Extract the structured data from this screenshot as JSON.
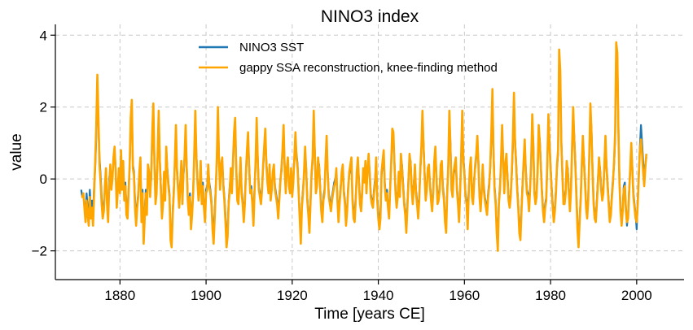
{
  "chart_data": {
    "type": "line",
    "title": "NINO3 index",
    "xlabel": "Time [years CE]",
    "ylabel": "value",
    "xlim": [
      1865,
      2011
    ],
    "ylim": [
      -2.8,
      4.3
    ],
    "xticks": [
      1880,
      1900,
      1920,
      1940,
      1960,
      1980,
      2000
    ],
    "yticks": [
      -2,
      0,
      2,
      4
    ],
    "xtick_labels": [
      "1880",
      "1900",
      "1920",
      "1940",
      "1960",
      "1980",
      "2000"
    ],
    "ytick_labels": [
      "−2",
      "0",
      "2",
      "4"
    ],
    "grid": true,
    "legend_position": "top-center",
    "series": [
      {
        "name": "NINO3 SST",
        "color": "#1f77b4",
        "x_start": 1871.0,
        "x_step": 0.25,
        "values": [
          -0.3,
          -0.5,
          -0.5,
          -0.7,
          -1.0,
          -0.4,
          -0.8,
          -1.1,
          -0.3,
          -0.9,
          -0.6,
          -1.0,
          -0.2,
          0.3,
          1.2,
          2.7,
          1.5,
          0.6,
          0.1,
          -0.5,
          -0.9,
          -0.8,
          -0.3,
          0.2,
          -0.6,
          -1.0,
          0.0,
          0.3,
          -0.2,
          0.1,
          0.5,
          0.8,
          0.3,
          -0.6,
          -0.2,
          0.2,
          -0.3,
          0.7,
          -0.2,
          0.4,
          -0.5,
          -0.1,
          -0.8,
          -0.9,
          -0.3,
          0.3,
          1.5,
          2.0,
          0.4,
          0.2,
          -0.6,
          -1.1,
          -0.7,
          -0.4,
          0.1,
          0.5,
          -1.0,
          -0.3,
          -1.6,
          -0.9,
          -0.3,
          -0.8,
          0.3,
          0.1,
          -0.4,
          0.0,
          1.1,
          1.9,
          0.6,
          -0.5,
          -0.3,
          0.6,
          1.7,
          0.6,
          -0.2,
          -1.0,
          -0.6,
          0.1,
          -0.5,
          0.8,
          0.3,
          -0.1,
          -0.4,
          -1.5,
          -1.8,
          -0.9,
          -0.3,
          0.4,
          1.3,
          0.3,
          -0.2,
          -0.7,
          -0.1,
          0.4,
          -0.6,
          0.1,
          0.5,
          1.3,
          0.4,
          -0.5,
          -0.8,
          -0.4,
          -1.2,
          -0.9,
          -0.3,
          0.6,
          1.7,
          0.7,
          0.0,
          -0.5,
          -0.2,
          0.4,
          -0.6,
          -0.1,
          -0.7,
          -1.0,
          -0.3,
          -0.2,
          0.3,
          -0.1,
          -0.3,
          -0.6,
          -1.2,
          -1.5,
          -0.9,
          -0.2,
          0.5,
          1.8,
          0.6,
          -0.2,
          0.3,
          0.5,
          -0.1,
          -0.5,
          -1.0,
          -1.8,
          -1.4,
          -0.6,
          -0.2,
          0.2,
          -0.3,
          0.4,
          1.1,
          1.5,
          0.4,
          -0.5,
          -0.6,
          0.0,
          0.5,
          -0.3,
          -0.6,
          -1.0,
          -0.6,
          0.1,
          0.7,
          1.1,
          0.4,
          -0.3,
          -0.2,
          -0.6,
          -1.1,
          -0.3,
          0.4,
          1.5,
          0.6,
          -0.2,
          -0.4,
          -0.6,
          -0.2,
          0.3,
          0.8,
          1.2,
          0.5,
          0.0,
          -0.3,
          0.3,
          -0.5,
          -0.2,
          0.1,
          0.3,
          -0.2,
          -0.4,
          -0.6,
          -1.0,
          -0.5,
          0.0,
          0.2,
          0.7,
          1.3,
          0.4,
          -0.3,
          0.2,
          0.5,
          -0.1,
          -0.3,
          0.2,
          -0.4,
          0.0,
          0.5,
          1.1,
          0.7,
          0.4,
          -0.3,
          -1.0,
          -1.6,
          -0.7,
          -0.3,
          0.1,
          0.8,
          0.3,
          -0.5,
          -0.9,
          -1.3,
          -0.6,
          0.1,
          0.5,
          1.7,
          0.8,
          -0.3,
          -0.1,
          0.5,
          0.4,
          -0.2,
          -0.8,
          -1.0,
          -0.5,
          -0.3,
          0.4,
          1.0,
          0.2,
          -0.4,
          -0.6,
          -0.8,
          -0.5,
          -0.3,
          -0.1,
          0.0,
          0.2,
          -0.5,
          -1.1,
          -0.6,
          -0.2,
          0.1,
          0.3,
          -0.3,
          -0.6,
          -1.1,
          -0.8,
          -0.2,
          0.1,
          0.3,
          0.5,
          -0.5,
          -0.9,
          -1.0,
          -0.5,
          0.1,
          0.5,
          0.0,
          -0.6,
          -0.8,
          -0.3,
          0.2,
          0.0,
          0.4,
          -0.3,
          0.2,
          0.6,
          0.2,
          -0.4,
          -0.6,
          -0.7,
          -0.3,
          0.0,
          0.5,
          -0.5,
          -0.9,
          -1.2,
          -1.0,
          0.1,
          0.4,
          0.7,
          -0.1,
          -0.5,
          -0.3,
          -0.7,
          -1.0,
          -0.2,
          0.4,
          1.2,
          1.1,
          0.5,
          -0.3,
          -0.7,
          -0.4,
          0.1,
          -0.4,
          0.6,
          0.4,
          -0.1,
          -0.6,
          -0.9,
          -1.3,
          -0.7,
          0.0,
          0.6,
          0.5,
          -0.2,
          -0.6,
          -0.1,
          0.3,
          -0.3,
          -0.6,
          -0.9,
          -0.5,
          0.2,
          0.8,
          1.7,
          1.0,
          0.2,
          -0.5,
          -0.2,
          0.2,
          0.3,
          -0.1,
          -0.5,
          -0.8,
          -0.3,
          0.4,
          0.8,
          0.1,
          -0.6,
          -0.5,
          -0.2,
          0.3,
          0.4,
          -0.2,
          -0.5,
          -1.1,
          -1.3,
          -0.3,
          0.3,
          1.7,
          1.0,
          -0.2,
          -0.4,
          0.1,
          0.3,
          0.5,
          -0.2,
          -0.6,
          -1.0,
          -0.3,
          0.6,
          1.7,
          0.6,
          0.2,
          -0.4,
          -0.6,
          -1.2,
          -0.3,
          0.2,
          0.5,
          -0.4,
          -0.6,
          0.0,
          0.3,
          0.6,
          1.0,
          0.5,
          -0.4,
          -0.8,
          -0.3,
          0.3,
          -0.2,
          -0.5,
          -0.7,
          -0.9,
          -0.4,
          -0.1,
          0.3,
          1.1,
          2.3,
          0.8,
          -0.2,
          -0.6,
          -1.3,
          -1.6,
          -0.6,
          -0.2,
          0.4,
          1.3,
          0.6,
          -0.3,
          0.3,
          0.6,
          0.1,
          -0.5,
          -0.7,
          -0.4,
          0.1,
          0.9,
          2.2,
          1.1,
          0.5,
          -0.2,
          -0.7,
          -1.3,
          -1.5,
          -0.8,
          -0.1,
          0.4,
          0.9,
          0.3,
          -0.3,
          -0.4,
          -0.8,
          -0.2,
          0.4,
          1.6,
          1.0,
          -0.3,
          -0.6,
          -0.4,
          0.2,
          1.3,
          1.1,
          0.4,
          -0.3,
          -0.8,
          -1.0,
          -0.7,
          -0.5,
          0.4,
          1.6,
          1.1,
          0.4,
          -0.2,
          -0.7,
          -1.0,
          -0.8,
          -0.3,
          0.3,
          0.7,
          3.3,
          2.9,
          1.1,
          0.2,
          -0.6,
          -0.6,
          -0.3,
          0.4,
          0.3,
          -0.3,
          -0.8,
          -0.2,
          0.8,
          1.8,
          1.2,
          0.5,
          -0.4,
          -1.2,
          -1.8,
          -1.1,
          -0.5,
          0.3,
          1.0,
          0.6,
          0.0,
          -0.7,
          -1.0,
          -0.5,
          0.6,
          1.9,
          1.4,
          0.3,
          -0.6,
          -1.0,
          -1.1,
          -0.6,
          0.0,
          0.5,
          0.3,
          -0.2,
          -0.5,
          -0.3,
          0.3,
          1.0,
          0.4,
          -0.1,
          -0.6,
          -1.1,
          -0.9,
          -0.4,
          0.0,
          0.4,
          1.1,
          3.5,
          3.4,
          1.5,
          0.0,
          -0.8,
          -1.2,
          -0.8,
          -0.2,
          -0.1,
          -0.8,
          -1.3,
          -1.0,
          -0.3,
          0.2,
          0.9,
          0.3,
          -0.4,
          -0.7,
          -1.0,
          -1.4,
          -0.6,
          0.2,
          0.9,
          1.5,
          1.0,
          0.5,
          0.0,
          0.4,
          0.6
        ]
      },
      {
        "name": "gappy SSA reconstruction, knee-finding method",
        "color": "#ffa500",
        "x_start": 1871.0,
        "x_step": 0.25,
        "values": [
          -0.5,
          -0.5,
          -0.4,
          -0.8,
          -1.2,
          -0.6,
          -1.0,
          -1.3,
          -0.5,
          -1.1,
          -0.8,
          -1.3,
          -0.4,
          0.5,
          1.5,
          2.9,
          1.7,
          0.4,
          -0.1,
          -0.7,
          -1.1,
          -0.9,
          -0.2,
          0.3,
          -0.7,
          -1.2,
          -0.2,
          0.4,
          -0.3,
          0.0,
          0.6,
          0.9,
          0.2,
          -0.8,
          -0.3,
          0.3,
          -0.4,
          0.8,
          -0.3,
          0.5,
          -0.6,
          -0.2,
          -1.0,
          -1.1,
          -0.4,
          0.4,
          1.7,
          2.2,
          0.3,
          0.1,
          -0.8,
          -1.3,
          -0.8,
          -0.5,
          0.2,
          0.6,
          -1.2,
          -0.4,
          -1.8,
          -1.1,
          -0.4,
          -1.0,
          0.4,
          0.2,
          -0.5,
          0.1,
          1.3,
          2.1,
          0.5,
          -0.7,
          -0.4,
          0.7,
          1.9,
          0.5,
          -0.3,
          -1.1,
          -0.7,
          0.2,
          -0.6,
          0.9,
          0.2,
          -0.2,
          -0.5,
          -1.7,
          -1.9,
          -1.0,
          -0.4,
          0.5,
          1.5,
          0.2,
          -0.3,
          -0.8,
          -0.2,
          0.5,
          -0.7,
          0.2,
          0.6,
          1.5,
          0.3,
          -0.6,
          -1.0,
          -0.5,
          -1.4,
          -1.0,
          -0.4,
          0.7,
          1.9,
          0.6,
          -0.1,
          -0.6,
          -0.3,
          0.5,
          -0.7,
          -0.2,
          -0.8,
          -1.2,
          -0.4,
          -0.3,
          0.4,
          -0.2,
          -0.4,
          -0.7,
          -1.4,
          -1.8,
          -1.1,
          -0.3,
          0.6,
          2.0,
          0.5,
          -0.3,
          0.4,
          0.6,
          -0.2,
          -0.6,
          -1.2,
          -1.9,
          -1.6,
          -0.7,
          -0.3,
          0.3,
          -0.4,
          0.5,
          1.3,
          1.7,
          0.3,
          -0.6,
          -0.7,
          -0.1,
          0.6,
          -0.4,
          -0.7,
          -1.2,
          -0.7,
          0.2,
          0.8,
          1.3,
          0.3,
          -0.4,
          -0.3,
          -0.7,
          -1.3,
          -0.4,
          0.5,
          1.7,
          0.5,
          -0.3,
          -0.5,
          -0.7,
          -0.3,
          0.4,
          0.9,
          1.4,
          0.4,
          -0.1,
          -0.4,
          0.4,
          -0.6,
          -0.3,
          0.2,
          0.4,
          -0.3,
          -0.5,
          -0.7,
          -1.1,
          -0.6,
          -0.1,
          0.3,
          0.8,
          1.5,
          0.3,
          -0.4,
          0.3,
          0.6,
          -0.2,
          -0.4,
          0.3,
          -0.5,
          -0.1,
          0.6,
          1.3,
          0.6,
          0.3,
          -0.4,
          -1.1,
          -1.8,
          -0.8,
          -0.4,
          0.2,
          0.9,
          0.2,
          -0.6,
          -1.0,
          -1.5,
          -0.7,
          0.2,
          0.6,
          1.9,
          0.7,
          -0.4,
          -0.2,
          0.6,
          0.3,
          -0.3,
          -0.9,
          -1.2,
          -0.6,
          -0.4,
          0.5,
          1.2,
          0.1,
          -0.5,
          -0.7,
          -0.9,
          -0.6,
          -0.4,
          -0.2,
          -0.1,
          0.3,
          -0.6,
          -1.2,
          -0.7,
          -0.3,
          0.2,
          0.4,
          -0.4,
          -0.7,
          -1.3,
          -0.9,
          -0.3,
          0.2,
          0.4,
          0.6,
          -0.6,
          -1.1,
          -1.2,
          -0.6,
          0.2,
          0.6,
          -0.1,
          -0.7,
          -0.9,
          -0.4,
          0.3,
          -0.1,
          0.5,
          -0.4,
          0.3,
          0.7,
          0.1,
          -0.5,
          -0.7,
          -0.8,
          -0.4,
          -0.1,
          0.6,
          -0.6,
          -1.1,
          -1.4,
          -1.1,
          0.2,
          0.5,
          0.8,
          -0.2,
          -0.6,
          -0.4,
          -0.8,
          -1.1,
          -0.3,
          0.5,
          1.4,
          1.3,
          0.4,
          -0.4,
          -0.8,
          -0.5,
          0.2,
          -0.5,
          0.7,
          0.3,
          -0.2,
          -0.7,
          -1.0,
          -1.5,
          -0.8,
          -0.1,
          0.7,
          0.4,
          -0.3,
          -0.7,
          -0.2,
          0.4,
          -0.4,
          -0.7,
          -1.1,
          -0.6,
          0.3,
          0.9,
          1.9,
          0.9,
          0.1,
          -0.6,
          -0.3,
          0.3,
          0.4,
          -0.2,
          -0.6,
          -0.9,
          -0.4,
          0.5,
          0.9,
          0.0,
          -0.7,
          -0.6,
          -0.3,
          0.4,
          0.5,
          -0.3,
          -0.6,
          -1.2,
          -1.5,
          -0.4,
          0.4,
          1.9,
          0.9,
          -0.3,
          -0.5,
          0.2,
          0.4,
          0.6,
          -0.3,
          -0.7,
          -1.2,
          -0.4,
          0.7,
          1.9,
          0.5,
          0.1,
          -0.5,
          -0.7,
          -1.4,
          -0.4,
          0.3,
          0.6,
          -0.5,
          -0.7,
          -0.1,
          0.4,
          0.7,
          1.2,
          0.4,
          -0.5,
          -0.9,
          -0.4,
          0.4,
          -0.3,
          -0.6,
          -0.8,
          -1.0,
          -0.5,
          -0.2,
          0.4,
          1.3,
          2.5,
          0.7,
          -0.3,
          -0.7,
          -1.5,
          -2.0,
          -0.7,
          -0.3,
          0.5,
          1.5,
          0.5,
          -0.4,
          0.4,
          0.7,
          0.0,
          -0.6,
          -0.8,
          -0.5,
          0.2,
          1.1,
          2.4,
          1.0,
          0.4,
          -0.3,
          -0.8,
          -1.5,
          -1.7,
          -0.9,
          -0.2,
          0.5,
          1.1,
          0.2,
          -0.4,
          -0.5,
          -0.9,
          -0.3,
          0.5,
          1.8,
          0.9,
          -0.4,
          -0.7,
          -0.5,
          0.3,
          1.5,
          1.0,
          0.3,
          -0.4,
          -0.9,
          -1.2,
          -0.8,
          -0.6,
          0.5,
          1.8,
          1.0,
          0.3,
          -0.3,
          -0.8,
          -1.2,
          -0.9,
          -0.4,
          0.4,
          0.8,
          3.6,
          3.0,
          1.0,
          0.1,
          -0.7,
          -0.7,
          -0.4,
          0.5,
          0.2,
          -0.4,
          -0.9,
          -0.3,
          0.9,
          2.0,
          1.1,
          0.4,
          -0.5,
          -1.4,
          -1.9,
          -1.2,
          -0.6,
          0.4,
          1.2,
          0.5,
          -0.1,
          -0.8,
          -1.1,
          -0.6,
          0.7,
          2.1,
          1.3,
          0.2,
          -0.7,
          -1.1,
          -1.2,
          -0.7,
          -0.1,
          0.6,
          0.2,
          -0.3,
          -0.6,
          -0.4,
          0.4,
          1.2,
          0.3,
          -0.2,
          -0.7,
          -1.2,
          -1.0,
          -0.5,
          -0.1,
          0.5,
          1.3,
          3.8,
          3.5,
          1.4,
          -0.1,
          -0.9,
          -1.3,
          -0.9,
          -0.3,
          -0.2,
          -0.9,
          -1.2,
          -1.1,
          -0.4,
          0.3,
          1.0,
          0.2,
          -0.5,
          -0.8,
          -1.1,
          -1.2,
          -0.7,
          0.1,
          0.8,
          1.1,
          0.7,
          0.2,
          -0.2,
          0.3,
          0.7
        ]
      }
    ]
  }
}
